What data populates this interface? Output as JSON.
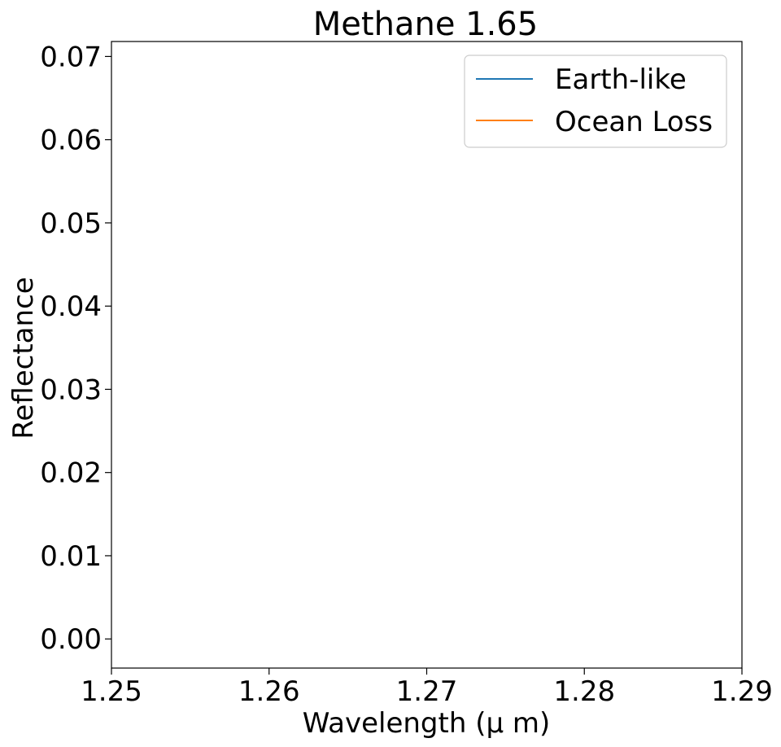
{
  "chart_data": {
    "type": "line",
    "title": "Methane 1.65",
    "xlabel": "Wavelength (μ m)",
    "ylabel": "Reflectance",
    "xlim": [
      1.25,
      1.29
    ],
    "ylim": [
      -0.0035,
      0.0718
    ],
    "xticks": [
      "1.25",
      "1.26",
      "1.27",
      "1.28",
      "1.29"
    ],
    "yticks": [
      "0.00",
      "0.01",
      "0.02",
      "0.03",
      "0.04",
      "0.05",
      "0.06",
      "0.07"
    ],
    "grid": false,
    "legend_position": "top-right",
    "series": [
      {
        "name": "Earth-like",
        "color": "#1f77b4",
        "x": [],
        "y": []
      },
      {
        "name": "Ocean Loss",
        "color": "#ff7f0e",
        "x": [],
        "y": []
      }
    ]
  }
}
